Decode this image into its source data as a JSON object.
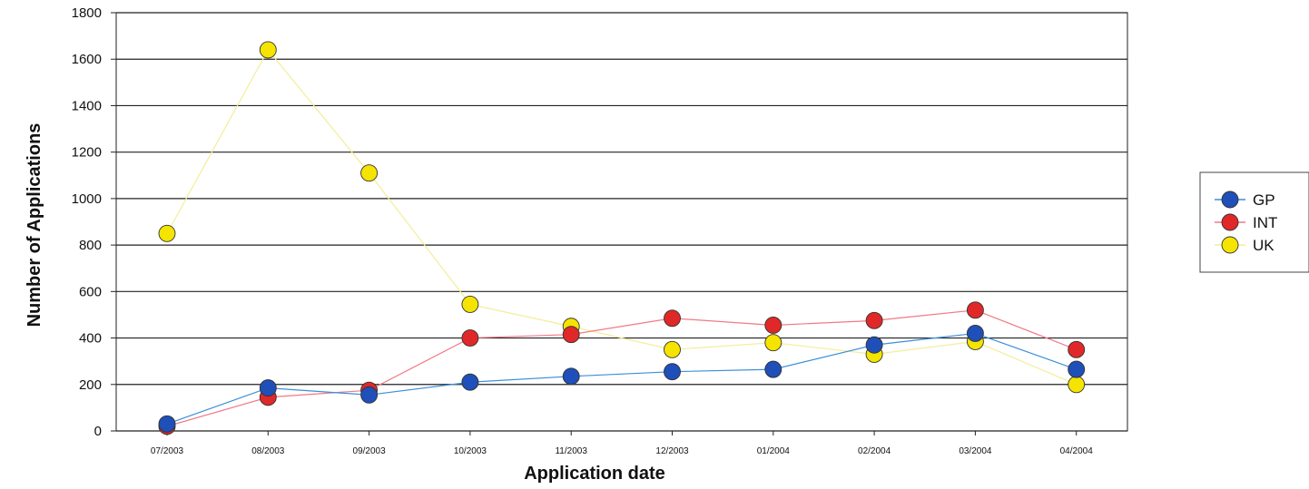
{
  "chart_data": {
    "type": "line",
    "title": "",
    "xlabel": "Application date",
    "ylabel": "Number of  Applications",
    "ylim": [
      0,
      1800
    ],
    "yticks": [
      0,
      200,
      400,
      600,
      800,
      1000,
      1200,
      1400,
      1600,
      1800
    ],
    "categories": [
      "07/2003",
      "08/2003",
      "09/2003",
      "10/2003",
      "11/2003",
      "12/2003",
      "01/2004",
      "02/2004",
      "03/2004",
      "04/2004"
    ],
    "grid": "horizontal",
    "legend_position": "right",
    "series": [
      {
        "name": "GP",
        "color": "#1f4fb8",
        "line_color": "#3b8fd8",
        "values": [
          30,
          185,
          155,
          210,
          235,
          255,
          265,
          370,
          420,
          265
        ]
      },
      {
        "name": "INT",
        "color": "#e02828",
        "line_color": "#f07a86",
        "values": [
          20,
          145,
          175,
          400,
          415,
          485,
          455,
          475,
          520,
          350
        ]
      },
      {
        "name": "UK",
        "color": "#f5e400",
        "line_color": "#f2ee9a",
        "values": [
          850,
          1640,
          1110,
          545,
          450,
          350,
          380,
          330,
          385,
          200
        ]
      }
    ]
  }
}
